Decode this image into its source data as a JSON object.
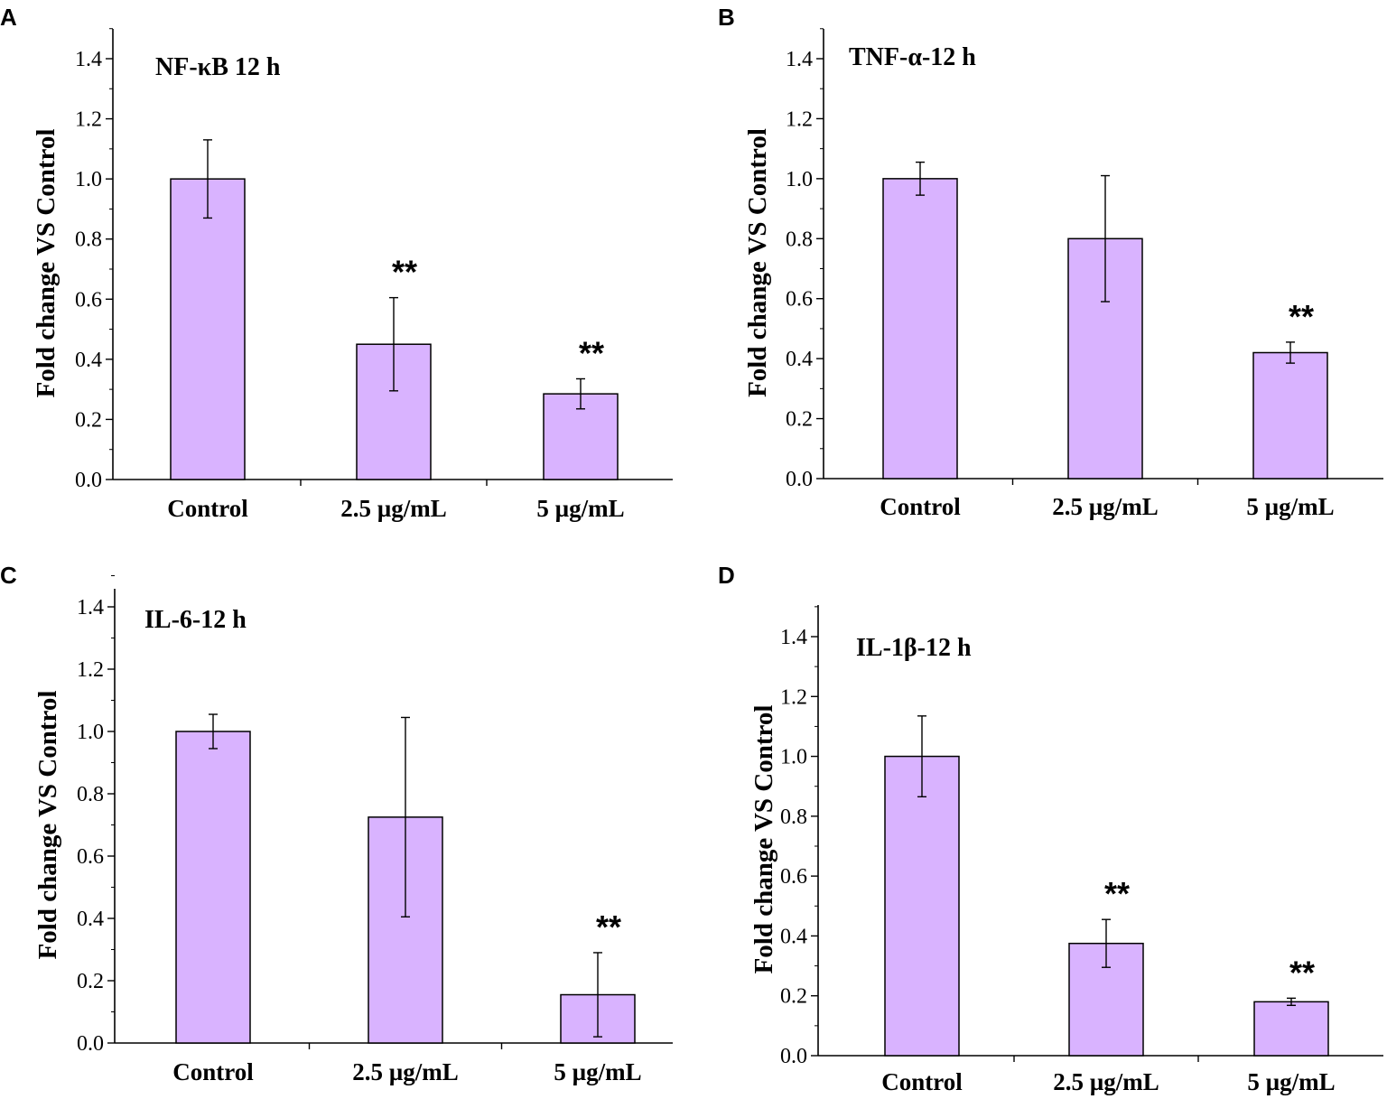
{
  "chart_data": [
    {
      "panel": "A",
      "type": "bar",
      "title": "NF-κB  12 h",
      "ylabel": "Fold change VS Control",
      "xlabel": "",
      "categories": [
        "Control",
        "2.5 µg/mL",
        "5 µg/mL"
      ],
      "values": [
        1.0,
        0.45,
        0.285
      ],
      "errors": [
        0.13,
        0.155,
        0.05
      ],
      "significance": [
        "",
        "**",
        "**"
      ],
      "ylim": [
        0,
        1.5
      ],
      "yticks": [
        "0.0",
        "0.2",
        "0.4",
        "0.6",
        "0.8",
        "1.0",
        "1.2",
        "1.4"
      ],
      "bar_color": "#d9b3ff"
    },
    {
      "panel": "B",
      "type": "bar",
      "title": "TNF-α-12 h",
      "ylabel": "Fold change VS Control",
      "xlabel": "",
      "categories": [
        "Control",
        "2.5 µg/mL",
        "5 µg/mL"
      ],
      "values": [
        1.0,
        0.8,
        0.42
      ],
      "errors": [
        0.055,
        0.21,
        0.035
      ],
      "significance": [
        "",
        "",
        "**"
      ],
      "ylim": [
        0,
        1.5
      ],
      "yticks": [
        "0.0",
        "0.2",
        "0.4",
        "0.6",
        "0.8",
        "1.0",
        "1.2",
        "1.4"
      ],
      "bar_color": "#d9b3ff"
    },
    {
      "panel": "C",
      "type": "bar",
      "title": "IL-6-12 h",
      "ylabel": "Fold change VS Control",
      "xlabel": "",
      "categories": [
        "Control",
        "2.5 µg/mL",
        "5 µg/mL"
      ],
      "values": [
        1.0,
        0.725,
        0.155
      ],
      "errors": [
        0.055,
        0.32,
        0.135
      ],
      "significance": [
        "",
        "",
        "**"
      ],
      "ylim": [
        0,
        1.5
      ],
      "yticks": [
        "0.0",
        "0.2",
        "0.4",
        "0.6",
        "0.8",
        "1.0",
        "1.2",
        "1.4"
      ],
      "bar_color": "#d9b3ff"
    },
    {
      "panel": "D",
      "type": "bar",
      "title": "IL-1β-12 h",
      "ylabel": "Fold change VS Control",
      "xlabel": "",
      "categories": [
        "Control",
        "2.5 µg/mL",
        "5 µg/mL"
      ],
      "values": [
        1.0,
        0.375,
        0.18
      ],
      "errors": [
        0.135,
        0.08,
        0.012
      ],
      "significance": [
        "",
        "**",
        "**"
      ],
      "ylim": [
        0,
        1.5
      ],
      "yticks": [
        "0.0",
        "0.2",
        "0.4",
        "0.6",
        "0.8",
        "1.0",
        "1.2",
        "1.4"
      ],
      "bar_color": "#d9b3ff"
    }
  ]
}
